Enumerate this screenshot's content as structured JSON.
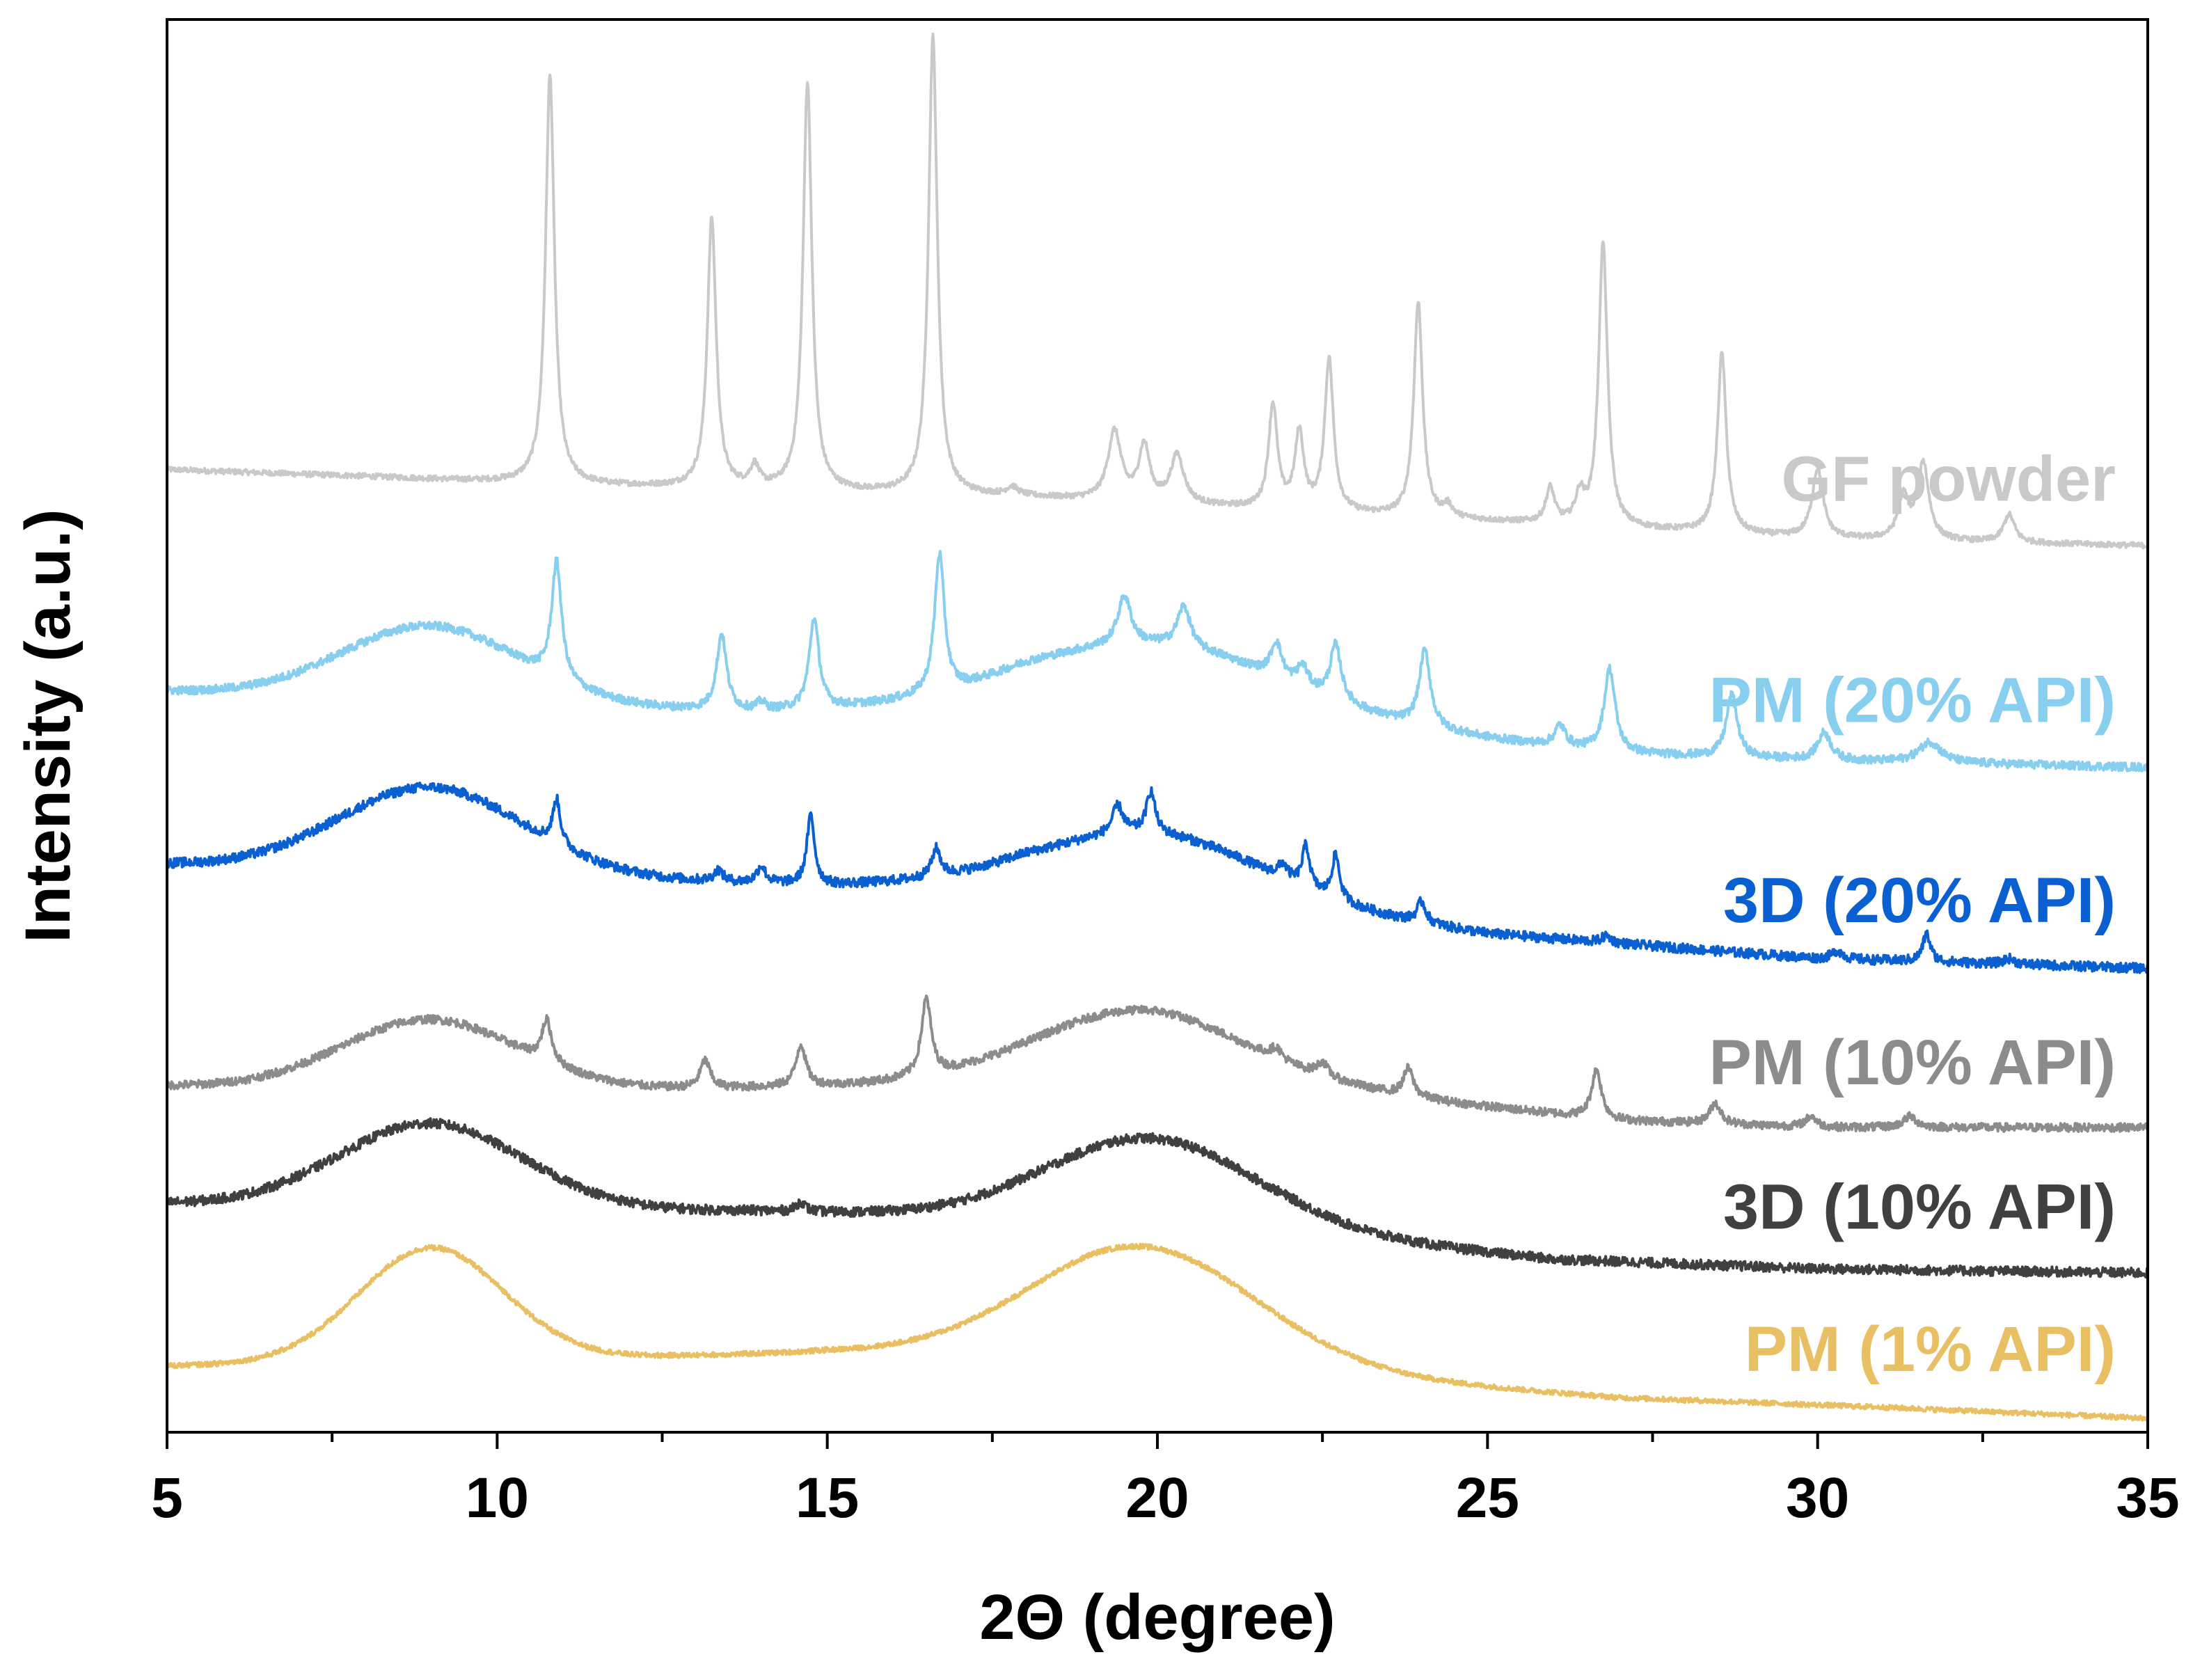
{
  "chart_data": {
    "type": "line",
    "title": "",
    "xlabel": "2Θ (degree)",
    "ylabel": "Intensity (a.u.)",
    "xlim": [
      5,
      35
    ],
    "ylim": [
      0,
      10.2
    ],
    "xticks": [
      5,
      10,
      15,
      20,
      25,
      30,
      35
    ],
    "grid": false,
    "legend": "labels at right end of each trace",
    "series": [
      {
        "name": "GF powder",
        "color": "#c9c9c9",
        "baseline": [
          [
            5,
            6.95
          ],
          [
            8,
            6.9
          ],
          [
            10.5,
            6.85
          ],
          [
            14,
            6.8
          ],
          [
            18,
            6.75
          ],
          [
            22,
            6.65
          ],
          [
            26,
            6.55
          ],
          [
            30,
            6.45
          ],
          [
            35,
            6.4
          ]
        ],
        "peaks": [
          [
            10.8,
            2.95,
            0.08
          ],
          [
            13.25,
            1.95,
            0.08
          ],
          [
            13.9,
            0.15,
            0.08
          ],
          [
            14.7,
            2.95,
            0.08
          ],
          [
            16.6,
            3.3,
            0.08
          ],
          [
            17.8,
            0.06,
            0.1
          ],
          [
            19.35,
            0.5,
            0.12
          ],
          [
            19.8,
            0.4,
            0.1
          ],
          [
            20.3,
            0.35,
            0.12
          ],
          [
            21.75,
            0.75,
            0.08
          ],
          [
            22.15,
            0.55,
            0.08
          ],
          [
            22.6,
            1.1,
            0.08
          ],
          [
            23.95,
            1.55,
            0.08
          ],
          [
            24.4,
            0.08,
            0.08
          ],
          [
            25.95,
            0.25,
            0.08
          ],
          [
            26.4,
            0.2,
            0.08
          ],
          [
            26.75,
            2.05,
            0.08
          ],
          [
            28.55,
            1.3,
            0.08
          ],
          [
            30.0,
            0.5,
            0.1
          ],
          [
            31.3,
            0.3,
            0.1
          ],
          [
            31.6,
            0.55,
            0.1
          ],
          [
            32.9,
            0.2,
            0.1
          ]
        ],
        "humps": [],
        "noise": 0.02
      },
      {
        "name": "PM (20% API)",
        "color": "#87ceef",
        "baseline": [
          [
            5,
            5.35
          ],
          [
            10,
            5.25
          ],
          [
            14,
            5.2
          ],
          [
            17,
            5.25
          ],
          [
            18,
            5.3
          ],
          [
            21,
            5.2
          ],
          [
            24,
            5.05
          ],
          [
            27,
            4.9
          ],
          [
            30,
            4.85
          ],
          [
            35,
            4.8
          ]
        ],
        "peaks": [
          [
            10.9,
            0.85,
            0.09
          ],
          [
            13.4,
            0.55,
            0.09
          ],
          [
            14.0,
            0.06,
            0.08
          ],
          [
            14.8,
            0.65,
            0.09
          ],
          [
            16.7,
            1.0,
            0.09
          ],
          [
            19.5,
            0.35,
            0.12
          ],
          [
            20.4,
            0.3,
            0.12
          ],
          [
            21.8,
            0.25,
            0.1
          ],
          [
            22.2,
            0.15,
            0.1
          ],
          [
            22.7,
            0.4,
            0.1
          ],
          [
            24.05,
            0.55,
            0.1
          ],
          [
            26.1,
            0.15,
            0.1
          ],
          [
            26.85,
            0.6,
            0.1
          ],
          [
            28.7,
            0.45,
            0.1
          ],
          [
            30.1,
            0.2,
            0.12
          ],
          [
            31.7,
            0.15,
            0.2
          ]
        ],
        "humps": [
          [
            9.0,
            0.55,
            1.35
          ],
          [
            20.0,
            0.45,
            1.9
          ]
        ],
        "noise": 0.03
      },
      {
        "name": "3D (20% API)",
        "color": "#0a5fd1",
        "baseline": [
          [
            5,
            4.1
          ],
          [
            10,
            4.02
          ],
          [
            15,
            3.95
          ],
          [
            18,
            4.0
          ],
          [
            22,
            3.8
          ],
          [
            25,
            3.6
          ],
          [
            30,
            3.42
          ],
          [
            35,
            3.35
          ]
        ],
        "peaks": [
          [
            10.9,
            0.32,
            0.07
          ],
          [
            13.35,
            0.08,
            0.08
          ],
          [
            14.0,
            0.12,
            0.08
          ],
          [
            14.75,
            0.5,
            0.07
          ],
          [
            16.65,
            0.2,
            0.08
          ],
          [
            19.4,
            0.2,
            0.1
          ],
          [
            19.9,
            0.3,
            0.08
          ],
          [
            21.9,
            0.1,
            0.08
          ],
          [
            22.25,
            0.3,
            0.07
          ],
          [
            22.7,
            0.32,
            0.07
          ],
          [
            24.0,
            0.15,
            0.08
          ],
          [
            26.8,
            0.05,
            0.08
          ],
          [
            30.3,
            0.06,
            0.1
          ],
          [
            31.65,
            0.2,
            0.07
          ],
          [
            32.9,
            0.04,
            0.1
          ]
        ],
        "humps": [
          [
            9.0,
            0.62,
            1.4
          ],
          [
            20.0,
            0.42,
            1.55
          ]
        ],
        "noise": 0.035
      },
      {
        "name": "PM (10% API)",
        "color": "#8c8c8c",
        "baseline": [
          [
            5,
            2.5
          ],
          [
            10,
            2.45
          ],
          [
            15,
            2.5
          ],
          [
            20,
            2.55
          ],
          [
            23,
            2.45
          ],
          [
            27,
            2.25
          ],
          [
            30,
            2.2
          ],
          [
            35,
            2.2
          ]
        ],
        "peaks": [
          [
            10.75,
            0.3,
            0.09
          ],
          [
            13.15,
            0.2,
            0.09
          ],
          [
            14.6,
            0.3,
            0.09
          ],
          [
            16.5,
            0.55,
            0.09
          ],
          [
            21.8,
            0.08,
            0.1
          ],
          [
            22.5,
            0.1,
            0.1
          ],
          [
            23.8,
            0.2,
            0.09
          ],
          [
            26.65,
            0.35,
            0.09
          ],
          [
            28.45,
            0.15,
            0.1
          ],
          [
            29.9,
            0.08,
            0.1
          ],
          [
            31.4,
            0.08,
            0.12
          ]
        ],
        "humps": [
          [
            9.0,
            0.52,
            1.35
          ],
          [
            19.7,
            0.5,
            1.6
          ]
        ],
        "noise": 0.03
      },
      {
        "name": "3D (10% API)",
        "color": "#404040",
        "baseline": [
          [
            5,
            1.65
          ],
          [
            10,
            1.6
          ],
          [
            14,
            1.6
          ],
          [
            18,
            1.55
          ],
          [
            22,
            1.45
          ],
          [
            26,
            1.25
          ],
          [
            30,
            1.18
          ],
          [
            35,
            1.15
          ]
        ],
        "peaks": [
          [
            14.6,
            0.07,
            0.08
          ]
        ],
        "humps": [
          [
            9.0,
            0.62,
            1.4
          ],
          [
            19.9,
            0.62,
            1.55
          ]
        ],
        "noise": 0.035
      },
      {
        "name": "PM (1% API)",
        "color": "#e8bf62",
        "baseline": [
          [
            5,
            0.48
          ],
          [
            10,
            0.52
          ],
          [
            15,
            0.58
          ],
          [
            19,
            0.55
          ],
          [
            23,
            0.4
          ],
          [
            27,
            0.25
          ],
          [
            31,
            0.18
          ],
          [
            35,
            0.1
          ]
        ],
        "peaks": [],
        "humps": [
          [
            9.0,
            0.82,
            1.1
          ],
          [
            19.8,
            0.82,
            1.7
          ]
        ],
        "noise": 0.018
      }
    ]
  }
}
